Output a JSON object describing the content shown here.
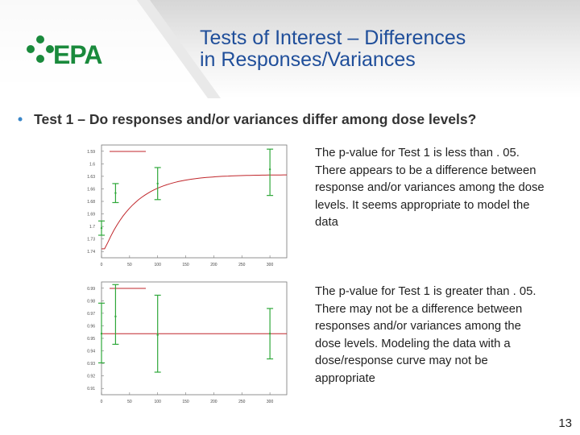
{
  "logo": {
    "text": "EPA"
  },
  "title": {
    "line1": "Tests of Interest – Differences",
    "line2": "in Responses/Variances"
  },
  "bullet": {
    "text": "Test 1 – Do responses and/or variances differ among dose levels?"
  },
  "descriptions": [
    "The p-value for Test 1 is less than . 05. There appears to be a difference between response and/or variances among the dose levels. It seems appropriate to model the data",
    "The p-value for Test 1 is greater than . 05. There may not be a difference between responses and/or variances among the dose levels. Modeling the data with a dose/response curve may not be appropriate"
  ],
  "slide_number": "13",
  "colors": {
    "title": "#1f4e9a",
    "fit_line": "#c0262b",
    "error_bar": "#2fa83a",
    "logo": "#1a8a3c"
  },
  "chart_data": [
    {
      "type": "scatter",
      "title": "",
      "xlabel": "",
      "ylabel": "",
      "x": [
        0,
        50,
        100,
        150,
        200,
        250,
        300
      ],
      "means": [
        1.64,
        1.699,
        1.715,
        1.739
      ],
      "error_low": [
        1.628,
        1.683,
        1.688,
        1.695
      ],
      "error_high": [
        1.652,
        1.715,
        1.742,
        1.773
      ],
      "dose": [
        0,
        25,
        100,
        300
      ],
      "fit": "curve",
      "yticks": [
        "1.59",
        "1.6",
        "1.63",
        "1.66",
        "1.68",
        "1.69",
        "1.7",
        "1.73",
        "1.74"
      ],
      "xticks": [
        "0",
        "50",
        "100",
        "150",
        "200",
        "250",
        "300"
      ],
      "ylim": [
        1.59,
        1.78
      ],
      "xlim": [
        0,
        330
      ]
    },
    {
      "type": "scatter",
      "title": "",
      "xlabel": "",
      "ylabel": "",
      "means": [
        0.956,
        0.969,
        0.955,
        0.956
      ],
      "error_low": [
        0.934,
        0.948,
        0.927,
        0.937
      ],
      "error_high": [
        0.979,
        0.993,
        0.985,
        0.975
      ],
      "dose": [
        0,
        25,
        100,
        300
      ],
      "fit": "flat",
      "yticks": [
        "0.99",
        "0.98",
        "0.97",
        "0.96",
        "0.95",
        "0.94",
        "0.93",
        "0.92",
        "0.91"
      ],
      "xticks": [
        "0",
        "50",
        "100",
        "150",
        "200",
        "250",
        "300"
      ],
      "ylim": [
        0.91,
        0.995
      ],
      "xlim": [
        0,
        330
      ]
    }
  ]
}
